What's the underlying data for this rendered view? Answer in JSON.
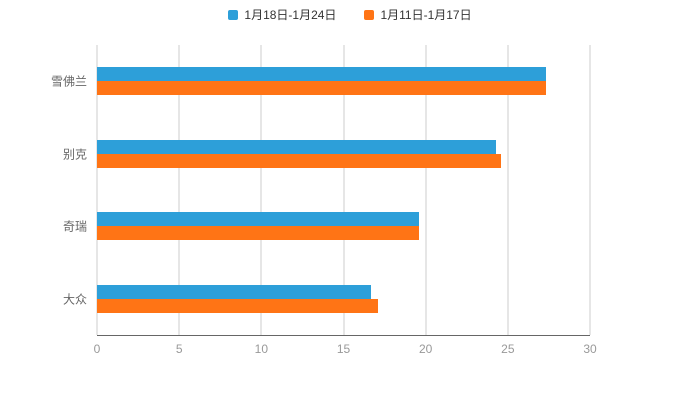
{
  "chart_data": {
    "type": "bar",
    "orientation": "horizontal",
    "title": "",
    "categories": [
      "雪佛兰",
      "别克",
      "奇瑞",
      "大众"
    ],
    "series": [
      {
        "name": "1月18日-1月24日",
        "color": "#2D9FD9",
        "values": [
          27.3,
          24.3,
          19.6,
          16.7
        ]
      },
      {
        "name": "1月11日-1月17日",
        "color": "#FF7415",
        "values": [
          27.3,
          24.6,
          19.6,
          17.1
        ]
      }
    ],
    "xlabel": "",
    "ylabel": "",
    "xlim": [
      0,
      30
    ],
    "xticks": [
      0,
      5,
      10,
      15,
      20,
      25,
      30
    ],
    "grid": true,
    "legend_position": "top",
    "colors": {
      "gridline": "#cccccc",
      "axis_line": "#666666",
      "tick_label": "#999999",
      "category_label": "#666666",
      "legend_label": "#333333",
      "background": "#ffffff"
    }
  }
}
